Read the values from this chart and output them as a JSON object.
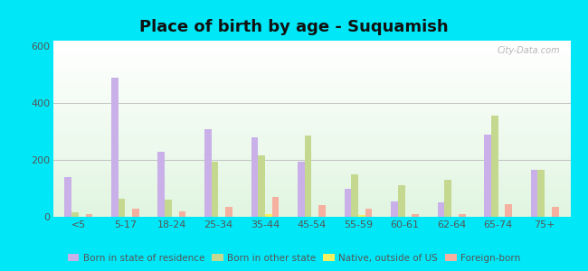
{
  "title": "Place of birth by age - Suquamish",
  "categories": [
    "<5",
    "5-17",
    "18-24",
    "25-34",
    "35-44",
    "45-54",
    "55-59",
    "60-61",
    "62-64",
    "65-74",
    "75+"
  ],
  "series": {
    "Born in state of residence": [
      140,
      490,
      230,
      310,
      280,
      195,
      100,
      55,
      50,
      290,
      165
    ],
    "Born in other state": [
      15,
      65,
      60,
      195,
      215,
      285,
      150,
      110,
      130,
      355,
      165
    ],
    "Native, outside of US": [
      0,
      0,
      0,
      0,
      10,
      0,
      5,
      0,
      0,
      0,
      0
    ],
    "Foreign-born": [
      10,
      30,
      20,
      35,
      70,
      40,
      30,
      10,
      10,
      45,
      35
    ]
  },
  "colors": {
    "Born in state of residence": "#c9b0e8",
    "Born in other state": "#c5d890",
    "Native, outside of US": "#f5f060",
    "Foreign-born": "#f5b0a0"
  },
  "ylim": [
    0,
    620
  ],
  "yticks": [
    0,
    200,
    400,
    600
  ],
  "cyan_bg": "#00e8f8",
  "bar_width": 0.15,
  "title_fontsize": 13
}
